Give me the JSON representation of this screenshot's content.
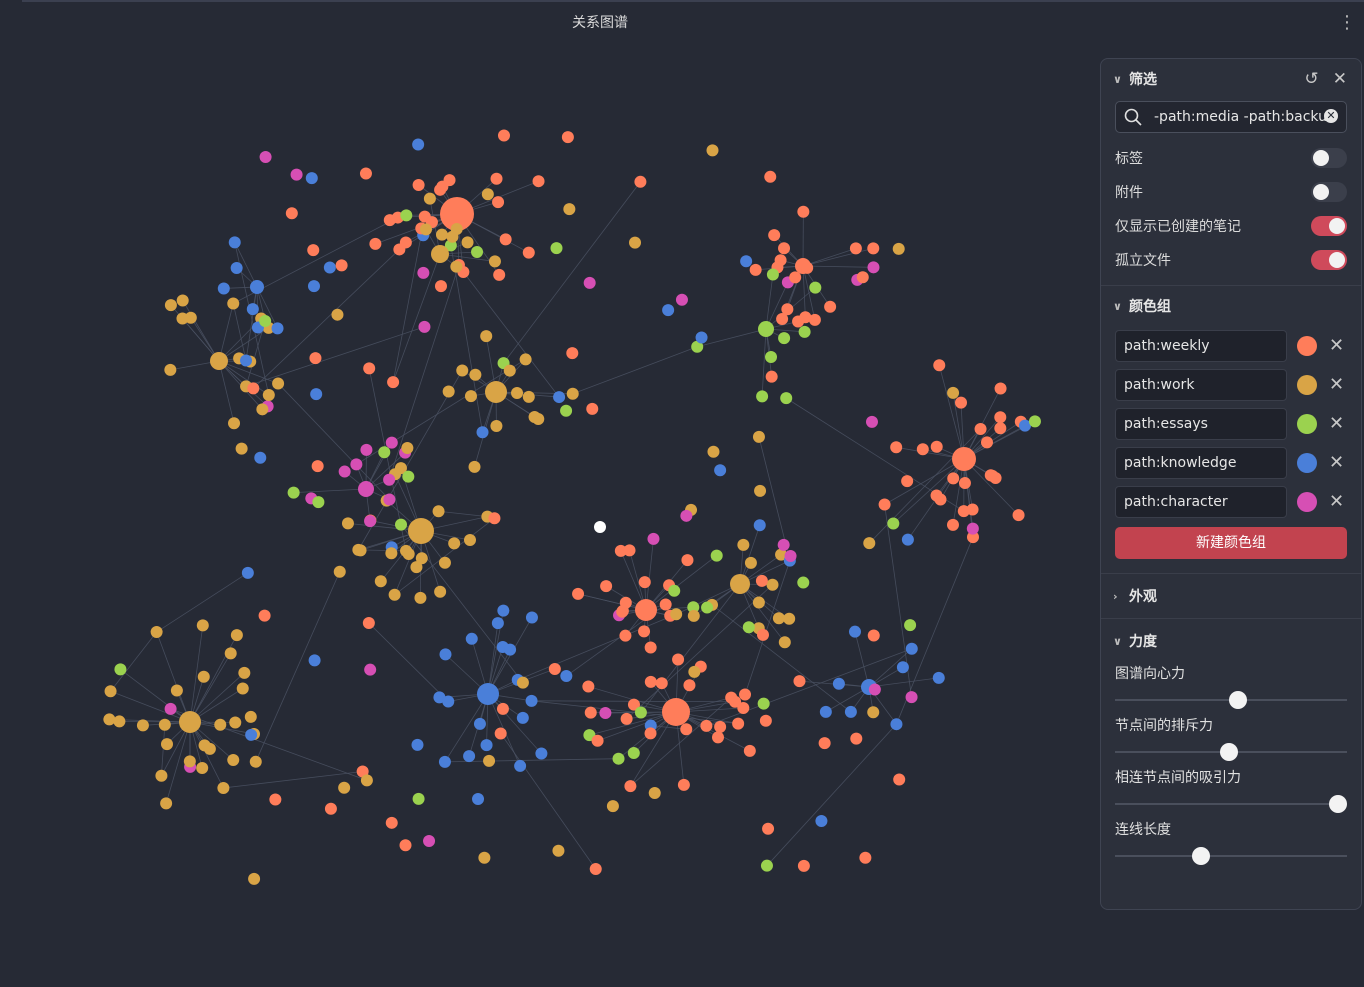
{
  "view_title": "关系图谱",
  "filter": {
    "title": "筛选",
    "search_value": "-path:media -path:backup",
    "toggles": [
      {
        "label": "标签",
        "on": false
      },
      {
        "label": "附件",
        "on": false
      },
      {
        "label": "仅显示已创建的笔记",
        "on": true
      },
      {
        "label": "孤立文件",
        "on": true
      }
    ]
  },
  "color_groups": {
    "title": "颜色组",
    "groups": [
      {
        "query": "path:weekly",
        "color": "#ff7d5a"
      },
      {
        "query": "path:work",
        "color": "#d9a446"
      },
      {
        "query": "path:essays",
        "color": "#9bd24f"
      },
      {
        "query": "path:knowledge",
        "color": "#4a7fd9"
      },
      {
        "query": "path:character",
        "color": "#d64fb4"
      }
    ],
    "new_button": "新建颜色组"
  },
  "appearance": {
    "title": "外观"
  },
  "forces": {
    "title": "力度",
    "sliders": [
      {
        "label": "图谱向心力",
        "value": 0.53
      },
      {
        "label": "节点间的排斥力",
        "value": 0.49
      },
      {
        "label": "相连节点间的吸引力",
        "value": 0.96
      },
      {
        "label": "连线长度",
        "value": 0.37
      }
    ]
  },
  "graph": {
    "colors": {
      "weekly": "#ff7d5a",
      "work": "#d9a446",
      "essays": "#9bd24f",
      "knowledge": "#4a7fd9",
      "character": "#d64fb4",
      "other": "#ffffff",
      "link": "#4b5263"
    }
  }
}
